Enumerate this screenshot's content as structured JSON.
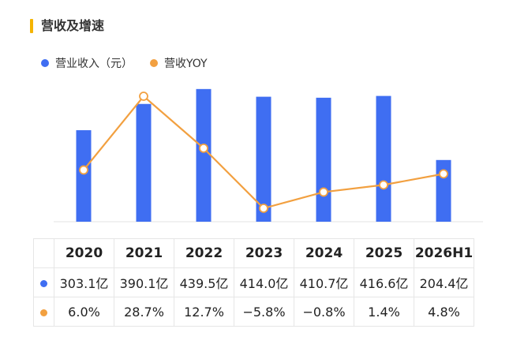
{
  "header": {
    "title": "营收及增速"
  },
  "colors": {
    "bar": "#3f6ef2",
    "line": "#f2a040",
    "accent": "#f5b400"
  },
  "chart_data": {
    "type": "bar+line",
    "categories": [
      "2020",
      "2021",
      "2022",
      "2023",
      "2024",
      "2025",
      "2026H1"
    ],
    "series": [
      {
        "name": "营业收入（元）",
        "type": "bar",
        "values": [
          303.1,
          390.1,
          439.5,
          414.0,
          410.7,
          416.6,
          204.4
        ],
        "labels": [
          "303.1亿",
          "390.1亿",
          "439.5亿",
          "414.0亿",
          "410.7亿",
          "416.6亿",
          "204.4亿"
        ]
      },
      {
        "name": "营收YOY",
        "type": "line",
        "values": [
          6.0,
          28.7,
          12.7,
          -5.8,
          -0.8,
          1.4,
          4.8
        ],
        "labels": [
          "6.0%",
          "28.7%",
          "12.7%",
          "−5.8%",
          "−0.8%",
          "1.4%",
          "4.8%"
        ]
      }
    ],
    "legend": "top-left",
    "grid": false
  }
}
